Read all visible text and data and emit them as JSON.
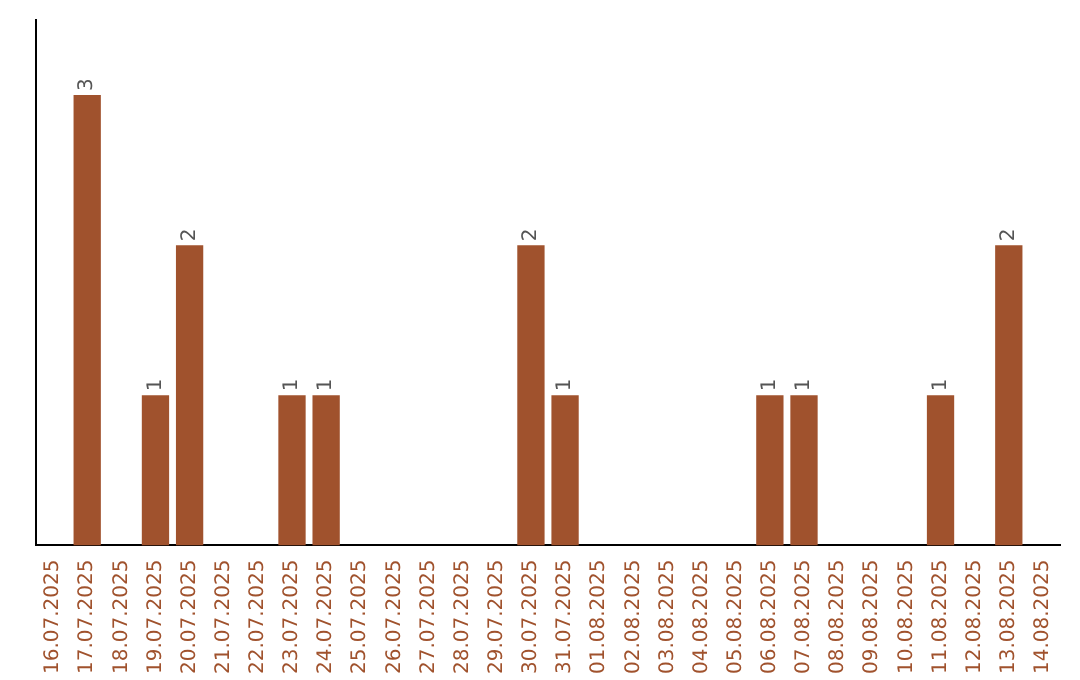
{
  "chart_data": {
    "type": "bar",
    "categories": [
      "16.07.2025",
      "17.07.2025",
      "18.07.2025",
      "19.07.2025",
      "20.07.2025",
      "21.07.2025",
      "22.07.2025",
      "23.07.2025",
      "24.07.2025",
      "25.07.2025",
      "26.07.2025",
      "27.07.2025",
      "28.07.2025",
      "29.07.2025",
      "30.07.2025",
      "31.07.2025",
      "01.08.2025",
      "02.08.2025",
      "03.08.2025",
      "04.08.2025",
      "05.08.2025",
      "06.08.2025",
      "07.08.2025",
      "08.08.2025",
      "09.08.2025",
      "10.08.2025",
      "11.08.2025",
      "12.08.2025",
      "13.08.2025",
      "14.08.2025"
    ],
    "values": [
      0,
      3,
      0,
      1,
      2,
      0,
      0,
      1,
      1,
      0,
      0,
      0,
      0,
      0,
      2,
      1,
      0,
      0,
      0,
      0,
      0,
      1,
      1,
      0,
      0,
      0,
      1,
      0,
      2,
      0
    ],
    "value_labels": [
      null,
      "3",
      null,
      "1",
      "2",
      null,
      null,
      "1",
      "1",
      null,
      null,
      null,
      null,
      null,
      "2",
      "1",
      null,
      null,
      null,
      null,
      null,
      "1",
      "1",
      null,
      null,
      null,
      "1",
      null,
      "2",
      null
    ],
    "color": "#a0522d",
    "grid": false,
    "tick_labels": "x"
  }
}
